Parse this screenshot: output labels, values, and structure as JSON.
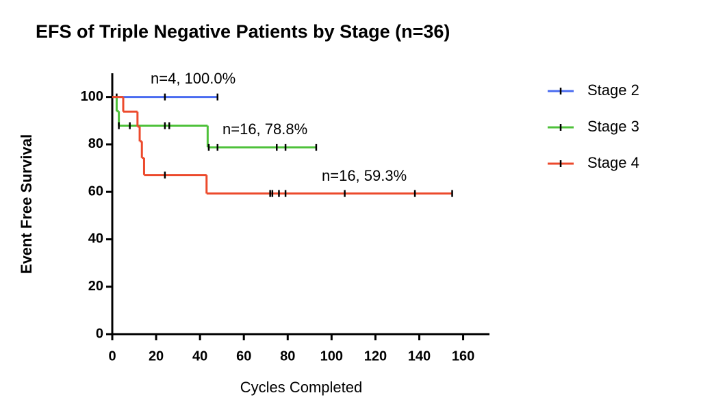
{
  "chart_data": {
    "type": "survival",
    "title": "EFS of Triple Negative Patients by Stage (n=36)",
    "x_label": "Cycles Completed",
    "y_label": "Event Free Survival",
    "xlim": [
      0,
      172
    ],
    "xticks": [
      0,
      20,
      40,
      60,
      80,
      100,
      120,
      140,
      160
    ],
    "ylim": [
      0,
      110
    ],
    "yticks": [
      0,
      20,
      40,
      60,
      80,
      100
    ],
    "series": [
      {
        "name": "Stage 2",
        "color": "#4a6cf0",
        "label": "n=4, 100.0%",
        "x": [
          0,
          48
        ],
        "values": [
          100,
          100
        ],
        "censor_x": [
          2,
          24,
          48
        ],
        "censor_values": [
          100,
          100,
          100
        ]
      },
      {
        "name": "Stage 3",
        "color": "#4ec13a",
        "label": "n=16, 78.8%",
        "x": [
          0,
          2,
          3,
          43.5,
          93
        ],
        "values": [
          100,
          94,
          87.9,
          78.8,
          78.8
        ],
        "censor_x": [
          3,
          8,
          24,
          26,
          44,
          48,
          75,
          79,
          93
        ],
        "censor_values": [
          87.9,
          87.9,
          87.9,
          87.9,
          78.8,
          78.8,
          78.8,
          78.8,
          78.8
        ]
      },
      {
        "name": "Stage 4",
        "color": "#ec4a2c",
        "label": "n=16, 59.3%",
        "x": [
          0,
          5,
          11.5,
          12.5,
          13.5,
          14.5,
          43,
          155
        ],
        "values": [
          100,
          93.8,
          87.5,
          81.3,
          74.3,
          67.1,
          59.3,
          59.3
        ],
        "censor_x": [
          24,
          72,
          73,
          76,
          79,
          106,
          138,
          155
        ],
        "censor_values": [
          67.1,
          59.3,
          59.3,
          59.3,
          59.3,
          59.3,
          59.3,
          59.3
        ]
      }
    ]
  }
}
